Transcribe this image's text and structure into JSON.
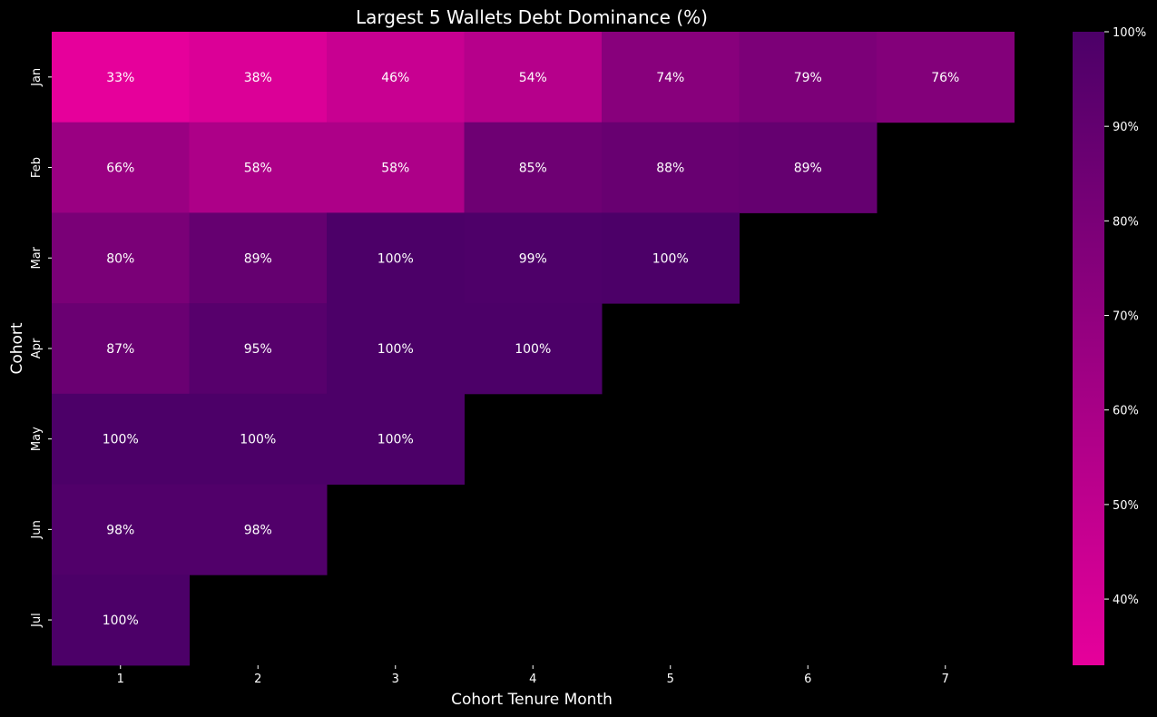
{
  "chart_data": {
    "type": "heatmap",
    "title": "Largest 5 Wallets Debt Dominance (%)",
    "xlabel": "Cohort Tenure Month",
    "ylabel": "Cohort",
    "x_categories": [
      "1",
      "2",
      "3",
      "4",
      "5",
      "6",
      "7"
    ],
    "y_categories": [
      "Jan",
      "Feb",
      "Mar",
      "Apr",
      "May",
      "Jun",
      "Jul"
    ],
    "values": [
      [
        33,
        38,
        46,
        54,
        74,
        79,
        76
      ],
      [
        66,
        58,
        58,
        85,
        88,
        89,
        null
      ],
      [
        80,
        89,
        100,
        99,
        100,
        null,
        null
      ],
      [
        87,
        95,
        100,
        100,
        null,
        null,
        null
      ],
      [
        100,
        100,
        100,
        null,
        null,
        null,
        null
      ],
      [
        98,
        98,
        null,
        null,
        null,
        null,
        null
      ],
      [
        100,
        null,
        null,
        null,
        null,
        null,
        null
      ]
    ],
    "value_format": "{v}%",
    "color_scale": {
      "min": 33,
      "max": 100,
      "low_color": "#e6009b",
      "high_color": "#4c0068"
    },
    "colorbar_ticks": [
      "40%",
      "50%",
      "60%",
      "70%",
      "80%",
      "90%",
      "100%"
    ],
    "colorbar_tick_values": [
      40,
      50,
      60,
      70,
      80,
      90,
      100
    ],
    "background": "#000000",
    "text_color": "#ffffff"
  }
}
